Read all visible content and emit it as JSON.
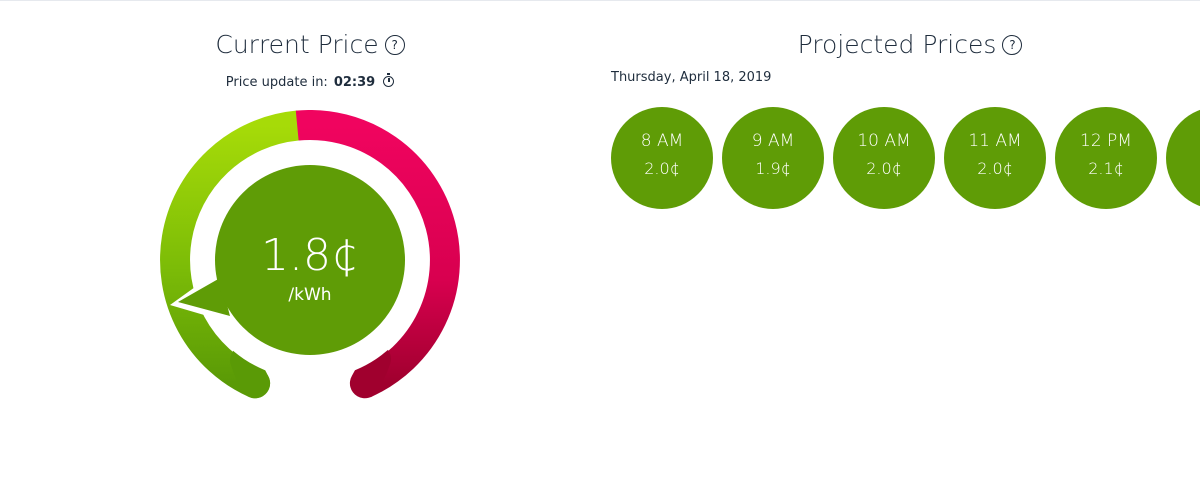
{
  "current": {
    "title": "Current Price",
    "help_icon": "?",
    "update_label": "Price update in:",
    "update_time": "02:39",
    "timer_icon": "stopwatch-icon",
    "price": "1.8¢",
    "unit": "/kWh",
    "gauge_level": 0.18,
    "colors": {
      "low_green": "#9ad10a",
      "mid_green": "#5f9c06",
      "high_red": "#e8005a",
      "dark_red": "#a3002f",
      "center": "#5f9c06"
    }
  },
  "projected": {
    "title": "Projected Prices",
    "help_icon": "?",
    "date": "Thursday, April 18, 2019",
    "hours": [
      {
        "time": "8 AM",
        "price": "2.0¢"
      },
      {
        "time": "9 AM",
        "price": "1.9¢"
      },
      {
        "time": "10 AM",
        "price": "2.0¢"
      },
      {
        "time": "11 AM",
        "price": "2.0¢"
      },
      {
        "time": "12 PM",
        "price": "2.1¢"
      },
      {
        "time": "",
        "price": ""
      }
    ]
  }
}
